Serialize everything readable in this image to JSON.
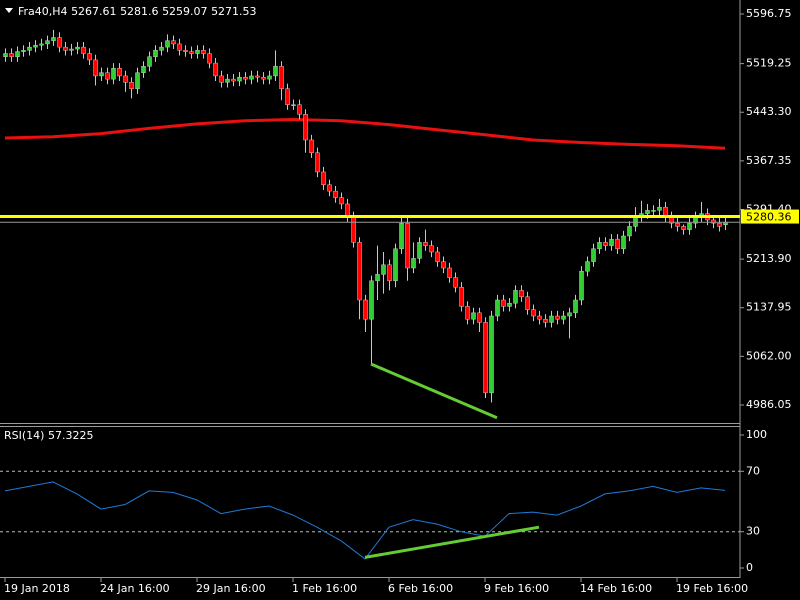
{
  "chart_data": [
    {
      "type": "candlestick",
      "symbol": "Fra40,H4",
      "open": [
        5530,
        5535,
        5530,
        5538,
        5540,
        5545,
        5548,
        5550,
        5555,
        5560,
        5545,
        5540,
        5542,
        5545,
        5535,
        5525,
        5500,
        5505,
        5495,
        5512,
        5500,
        5490,
        5480,
        5505,
        5515,
        5530,
        5540,
        5545,
        5555,
        5550,
        5540,
        5538,
        5535,
        5540,
        5535,
        5520,
        5500,
        5490,
        5495,
        5492,
        5498,
        5495,
        5500,
        5498,
        5495,
        5500,
        5515,
        5480,
        5455,
        5455,
        5440,
        5400,
        5380,
        5350,
        5330,
        5320,
        5310,
        5300,
        5280,
        5240,
        5150,
        5120,
        5180,
        5190,
        5205,
        5180,
        5230,
        5270,
        5200,
        5215,
        5240,
        5235,
        5225,
        5210,
        5200,
        5185,
        5170,
        5140,
        5120,
        5130,
        5115,
        5005,
        5125,
        5150,
        5140,
        5145,
        5165,
        5155,
        5135,
        5125,
        5120,
        5115,
        5125,
        5120,
        5125,
        5130,
        5150,
        5195,
        5210,
        5230,
        5240,
        5235,
        5245,
        5230,
        5250,
        5265,
        5280,
        5285,
        5290,
        5290,
        5295,
        5280,
        5270,
        5265,
        5260,
        5270,
        5280,
        5285,
        5275,
        5270,
        5267.61
      ],
      "high": [
        5543,
        5543,
        5546,
        5548,
        5553,
        5556,
        5558,
        5563,
        5572,
        5568,
        5553,
        5550,
        5553,
        5553,
        5543,
        5533,
        5513,
        5513,
        5520,
        5520,
        5508,
        5498,
        5513,
        5523,
        5538,
        5548,
        5553,
        5565,
        5563,
        5558,
        5548,
        5546,
        5548,
        5548,
        5543,
        5528,
        5508,
        5503,
        5503,
        5506,
        5506,
        5508,
        5508,
        5506,
        5508,
        5540,
        5523,
        5488,
        5463,
        5463,
        5448,
        5408,
        5388,
        5358,
        5338,
        5328,
        5318,
        5308,
        5288,
        5248,
        5158,
        5188,
        5235,
        5225,
        5213,
        5238,
        5282,
        5278,
        5240,
        5248,
        5260,
        5243,
        5233,
        5218,
        5208,
        5193,
        5178,
        5148,
        5138,
        5138,
        5123,
        5133,
        5158,
        5158,
        5153,
        5173,
        5173,
        5163,
        5143,
        5133,
        5128,
        5133,
        5133,
        5133,
        5138,
        5158,
        5203,
        5218,
        5238,
        5248,
        5248,
        5253,
        5253,
        5258,
        5273,
        5295,
        5305,
        5300,
        5298,
        5308,
        5303,
        5288,
        5278,
        5268,
        5278,
        5288,
        5303,
        5293,
        5283,
        5278,
        5281.6
      ],
      "low": [
        5522,
        5522,
        5522,
        5530,
        5532,
        5537,
        5540,
        5542,
        5547,
        5537,
        5532,
        5532,
        5534,
        5527,
        5517,
        5485,
        5492,
        5487,
        5487,
        5492,
        5475,
        5465,
        5472,
        5497,
        5507,
        5522,
        5532,
        5537,
        5542,
        5532,
        5530,
        5527,
        5527,
        5527,
        5512,
        5492,
        5482,
        5482,
        5484,
        5484,
        5487,
        5487,
        5490,
        5487,
        5487,
        5492,
        5462,
        5447,
        5447,
        5432,
        5380,
        5372,
        5342,
        5322,
        5312,
        5302,
        5292,
        5272,
        5232,
        5120,
        5100,
        5050,
        5150,
        5160,
        5165,
        5170,
        5222,
        5180,
        5192,
        5207,
        5227,
        5217,
        5202,
        5192,
        5177,
        5162,
        5132,
        5112,
        5112,
        5100,
        4997,
        4990,
        5117,
        5132,
        5132,
        5137,
        5147,
        5127,
        5117,
        5112,
        5107,
        5107,
        5112,
        5112,
        5090,
        5122,
        5142,
        5187,
        5202,
        5222,
        5227,
        5227,
        5222,
        5222,
        5242,
        5257,
        5272,
        5277,
        5282,
        5282,
        5272,
        5262,
        5257,
        5252,
        5252,
        5262,
        5272,
        5267,
        5262,
        5257,
        5259.07
      ],
      "close": [
        5535,
        5530,
        5538,
        5540,
        5545,
        5548,
        5550,
        5555,
        5560,
        5545,
        5540,
        5542,
        5545,
        5535,
        5525,
        5500,
        5505,
        5495,
        5512,
        5500,
        5490,
        5480,
        5505,
        5515,
        5530,
        5540,
        5545,
        5555,
        5550,
        5540,
        5538,
        5535,
        5540,
        5535,
        5520,
        5500,
        5490,
        5495,
        5492,
        5498,
        5495,
        5500,
        5498,
        5495,
        5500,
        5515,
        5480,
        5455,
        5455,
        5440,
        5400,
        5380,
        5350,
        5330,
        5320,
        5310,
        5300,
        5280,
        5240,
        5150,
        5120,
        5180,
        5190,
        5205,
        5180,
        5230,
        5270,
        5200,
        5215,
        5240,
        5235,
        5225,
        5210,
        5200,
        5185,
        5170,
        5140,
        5120,
        5130,
        5115,
        5005,
        5125,
        5150,
        5140,
        5145,
        5165,
        5155,
        5135,
        5125,
        5120,
        5115,
        5125,
        5120,
        5125,
        5130,
        5150,
        5195,
        5210,
        5230,
        5240,
        5235,
        5245,
        5230,
        5250,
        5265,
        5280,
        5285,
        5290,
        5290,
        5295,
        5280,
        5270,
        5265,
        5260,
        5270,
        5280,
        5285,
        5275,
        5270,
        5265,
        5271.53
      ],
      "up_color": "#32cd32",
      "down_color": "#ff0000",
      "xlim": [
        -0.83,
        122.5
      ],
      "ylim": [
        4957.9,
        5618.6
      ],
      "yticks": [
        5596.75,
        5519.25,
        {
          "value": 5443.3,
          "label": "5443.30"
        },
        5367.35,
        {
          "value": 5291.4,
          "label": "5291.40"
        },
        {
          "value": 5213.9,
          "label": "5213.90"
        },
        5137.95,
        {
          "value": 5062,
          "label": "5062.00"
        },
        4986.05
      ],
      "ma": {
        "color": "#e81010",
        "x": [
          0,
          8,
          16,
          24,
          32,
          40,
          48,
          56,
          64,
          72,
          80,
          88,
          96,
          104,
          112,
          120
        ],
        "values": [
          5403,
          5405,
          5410,
          5418,
          5425,
          5430,
          5432,
          5430,
          5424,
          5416,
          5408,
          5400,
          5396,
          5393,
          5391,
          5387
        ]
      },
      "level": {
        "value": 5280.36,
        "color": "#ffff00"
      },
      "trendline": {
        "color": "#66cc33",
        "x": [
          61,
          82
        ],
        "values": [
          5050,
          4966
        ]
      }
    },
    {
      "type": "line",
      "title": "RSI(14)",
      "color": "#1e7bd8",
      "x": [
        0,
        4,
        8,
        12,
        16,
        20,
        24,
        28,
        32,
        36,
        40,
        44,
        48,
        52,
        56,
        60,
        64,
        68,
        72,
        76,
        80,
        84,
        88,
        92,
        96,
        100,
        104,
        108,
        112,
        116,
        120
      ],
      "values": [
        57,
        60,
        63,
        55,
        45,
        48,
        57,
        56,
        51,
        42,
        45,
        47,
        41,
        33,
        24,
        12,
        33,
        38,
        35,
        30,
        27,
        42,
        43,
        41,
        47,
        55,
        57,
        60,
        56,
        59,
        57.3225
      ],
      "xlim": [
        -0.83,
        122.5
      ],
      "ylim": [
        0,
        100
      ],
      "yticks": [
        0,
        30,
        70,
        100
      ],
      "xticks": [
        {
          "value": 0,
          "label": "19 Jan 2018"
        },
        {
          "value": 16,
          "label": "24 Jan 16:00"
        },
        {
          "value": 32,
          "label": "29 Jan 16:00"
        },
        {
          "value": 48,
          "label": "1 Feb 16:00"
        },
        {
          "value": 64,
          "label": "6 Feb 16:00"
        },
        {
          "value": 80,
          "label": "9 Feb 16:00"
        },
        {
          "value": 96,
          "label": "14 Feb 16:00"
        },
        {
          "value": 112,
          "label": "19 Feb 16:00"
        }
      ],
      "trendline": {
        "color": "#66cc33",
        "x": [
          60,
          89
        ],
        "values": [
          13,
          33
        ]
      }
    }
  ]
}
